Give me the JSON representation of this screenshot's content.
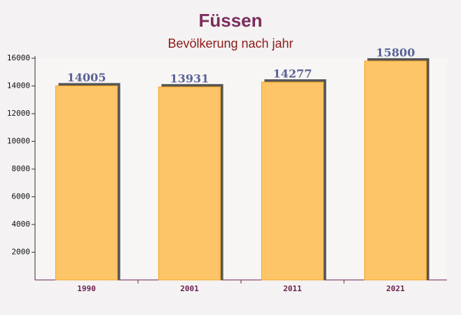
{
  "chart_data": {
    "type": "bar",
    "title": "Füssen",
    "subtitle": "Bevölkerung nach jahr",
    "categories": [
      "1990",
      "2001",
      "2011",
      "2021"
    ],
    "values": [
      14005,
      13931,
      14277,
      15800
    ],
    "color": "#fdc567",
    "ylim": [
      0,
      16000
    ],
    "yticks": [
      2000,
      4000,
      6000,
      8000,
      10000,
      12000,
      14000,
      16000
    ],
    "grid": false
  }
}
